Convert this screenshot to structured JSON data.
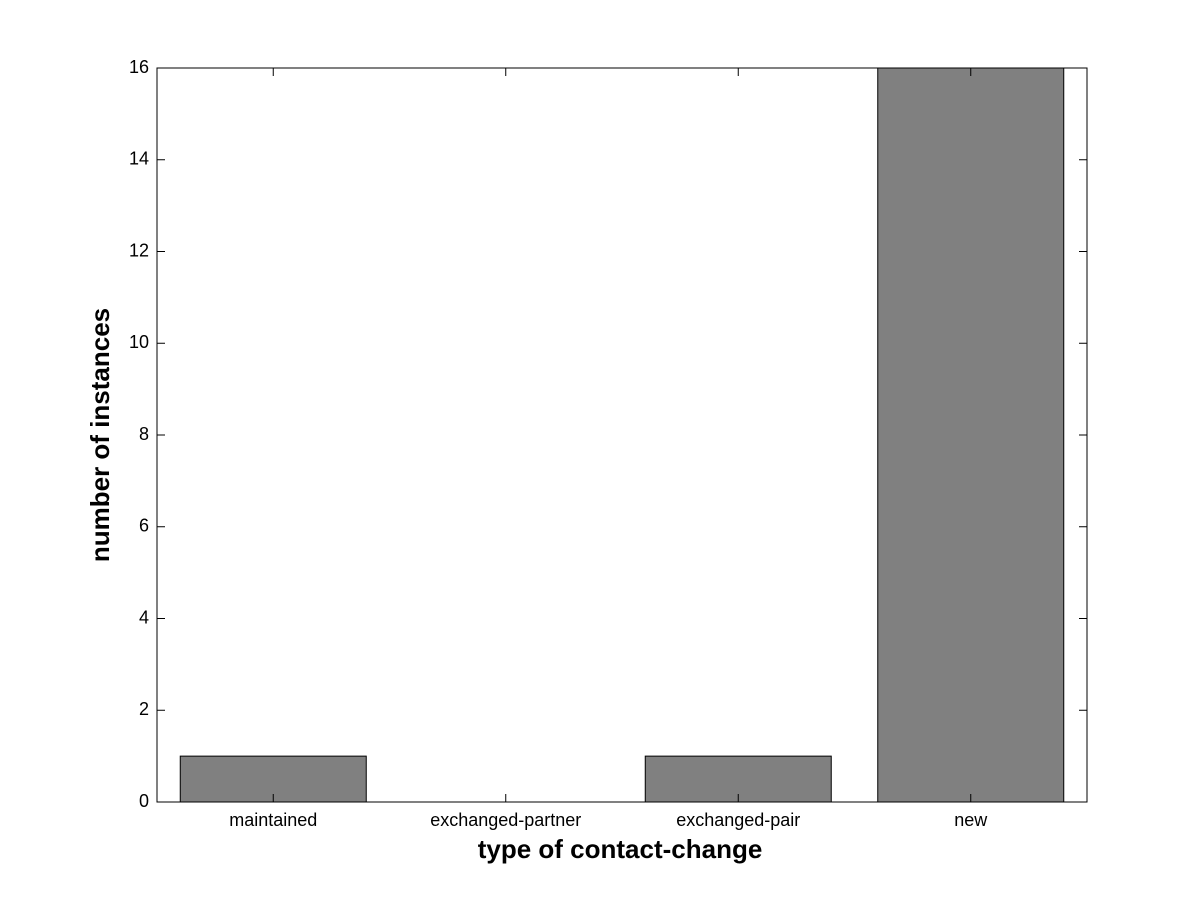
{
  "chart_data": {
    "type": "bar",
    "xlabel": "type of contact-change",
    "ylabel": "number of instances",
    "categories": [
      "maintained",
      "exchanged-partner",
      "exchanged-pair",
      "new"
    ],
    "values": [
      1,
      0,
      1,
      16
    ],
    "color": "#808080",
    "ylim": [
      0,
      16
    ],
    "yticks": [
      0,
      2,
      4,
      6,
      8,
      10,
      12,
      14,
      16
    ]
  }
}
